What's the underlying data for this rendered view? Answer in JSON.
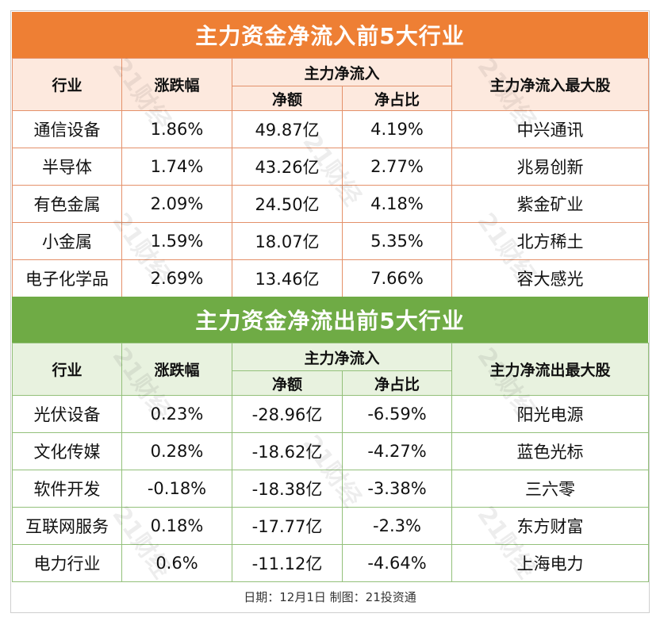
{
  "inflow": {
    "title": "主力资金净流入前5大行业",
    "headers": {
      "industry": "行业",
      "change": "涨跌幅",
      "group": "主力净流入",
      "net": "净额",
      "ratio": "净占比",
      "top_stock": "主力净流入最大股"
    },
    "rows": [
      {
        "industry": "通信设备",
        "change": "1.86%",
        "net": "49.87亿",
        "ratio": "4.19%",
        "stock": "中兴通讯"
      },
      {
        "industry": "半导体",
        "change": "1.74%",
        "net": "43.26亿",
        "ratio": "2.77%",
        "stock": "兆易创新"
      },
      {
        "industry": "有色金属",
        "change": "2.09%",
        "net": "24.50亿",
        "ratio": "4.18%",
        "stock": "紫金矿业"
      },
      {
        "industry": "小金属",
        "change": "1.59%",
        "net": "18.07亿",
        "ratio": "5.35%",
        "stock": "北方稀土"
      },
      {
        "industry": "电子化学品",
        "change": "2.69%",
        "net": "13.46亿",
        "ratio": "7.66%",
        "stock": "容大感光"
      }
    ]
  },
  "outflow": {
    "title": "主力资金净流出前5大行业",
    "headers": {
      "industry": "行业",
      "change": "涨跌幅",
      "group": "主力净流入",
      "net": "净额",
      "ratio": "净占比",
      "top_stock": "主力净流出最大股"
    },
    "rows": [
      {
        "industry": "光伏设备",
        "change": "0.23%",
        "net": "-28.96亿",
        "ratio": "-6.59%",
        "stock": "阳光电源"
      },
      {
        "industry": "文化传媒",
        "change": "0.28%",
        "net": "-18.62亿",
        "ratio": "-4.27%",
        "stock": "蓝色光标"
      },
      {
        "industry": "软件开发",
        "change": "-0.18%",
        "net": "-18.38亿",
        "ratio": "-3.38%",
        "stock": "三六零"
      },
      {
        "industry": "互联网服务",
        "change": "0.18%",
        "net": "-17.77亿",
        "ratio": "-2.3%",
        "stock": "东方财富"
      },
      {
        "industry": "电力行业",
        "change": "0.6%",
        "net": "-11.12亿",
        "ratio": "-4.64%",
        "stock": "上海电力"
      }
    ]
  },
  "footer": "日期：12月1日 制图：21投资通",
  "watermark": "21财经",
  "colors": {
    "inflow_accent": "#ee7f34",
    "outflow_accent": "#6fab45"
  }
}
